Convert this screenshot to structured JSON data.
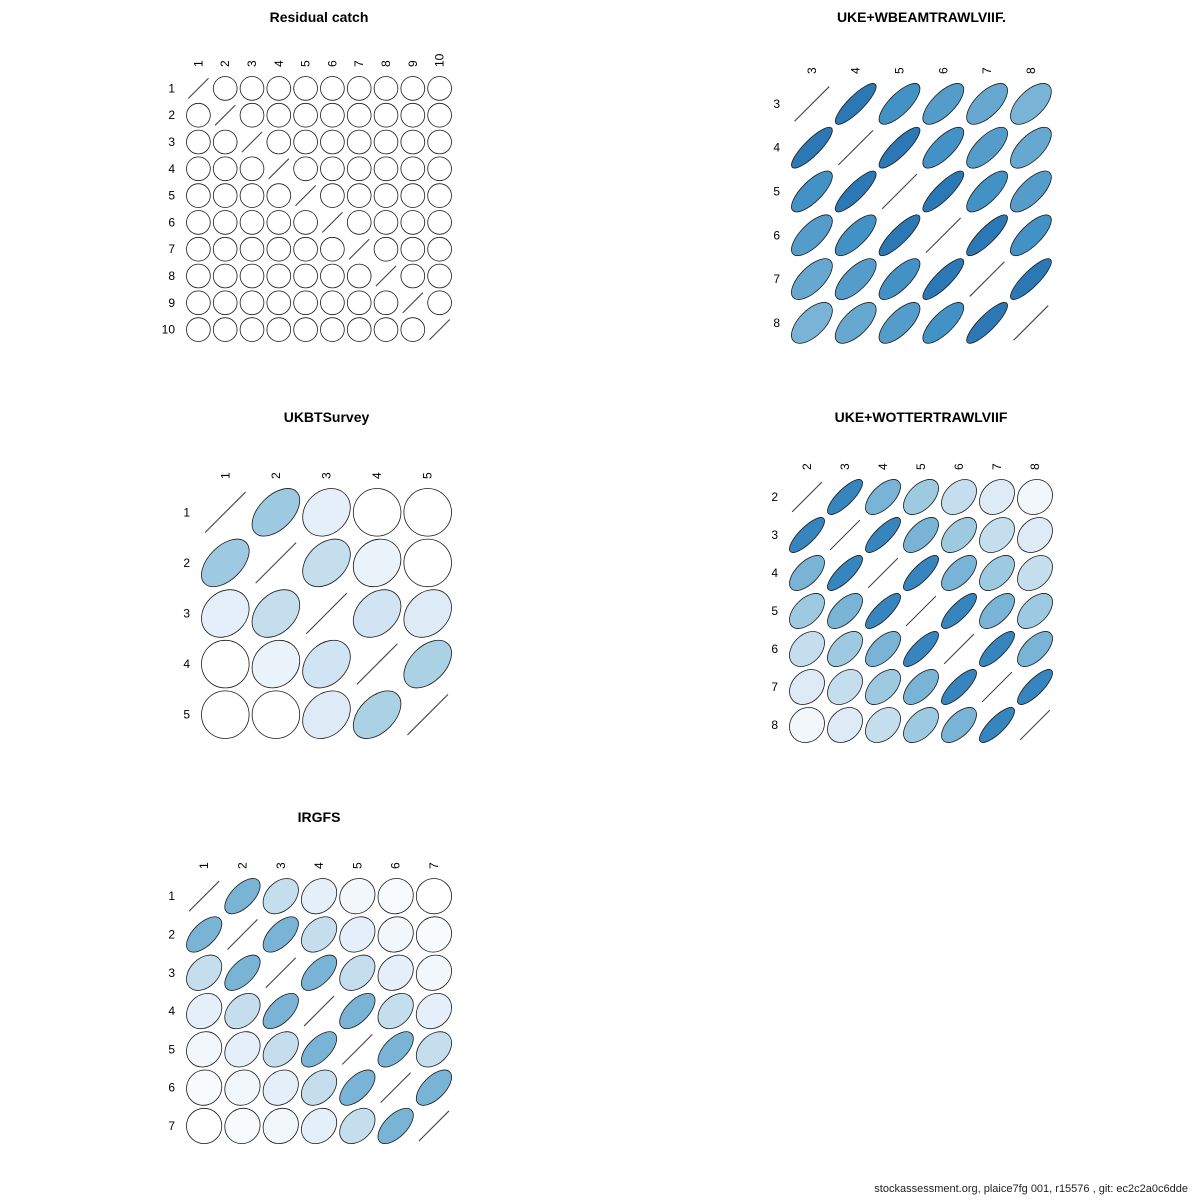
{
  "footer": "stockassessment.org, plaice7fg 001, r15576 , git: ec2c2a0c6dde",
  "colors": {
    "scale": [
      "#ffffff",
      "#deebf7",
      "#9ecae1",
      "#4292c6",
      "#08519c"
    ],
    "ellipse_stroke": "#1a1a1a",
    "diagonal_line": "#444444"
  },
  "chart_data": [
    {
      "type": "heatmap",
      "subtype": "correlation-ellipse-matrix",
      "title": "Residual catch",
      "ages": [
        "1",
        "2",
        "3",
        "4",
        "5",
        "6",
        "7",
        "8",
        "9",
        "10"
      ],
      "matrix": [
        [
          1,
          0,
          0,
          0,
          0,
          0,
          0,
          0,
          0,
          0
        ],
        [
          0,
          1,
          0,
          0,
          0,
          0,
          0,
          0,
          0,
          0
        ],
        [
          0,
          0,
          1,
          0,
          0,
          0,
          0,
          0,
          0,
          0
        ],
        [
          0,
          0,
          0,
          1,
          0,
          0,
          0,
          0,
          0,
          0
        ],
        [
          0,
          0,
          0,
          0,
          1,
          0,
          0,
          0,
          0,
          0
        ],
        [
          0,
          0,
          0,
          0,
          0,
          1,
          0,
          0,
          0,
          0
        ],
        [
          0,
          0,
          0,
          0,
          0,
          0,
          1,
          0,
          0,
          0
        ],
        [
          0,
          0,
          0,
          0,
          0,
          0,
          0,
          1,
          0,
          0
        ],
        [
          0,
          0,
          0,
          0,
          0,
          0,
          0,
          0,
          1,
          0
        ],
        [
          0,
          0,
          0,
          0,
          0,
          0,
          0,
          0,
          0,
          1
        ]
      ]
    },
    {
      "type": "heatmap",
      "subtype": "correlation-ellipse-matrix",
      "title": "UKE+WBEAMTRAWLVIIF.",
      "ages": [
        "3",
        "4",
        "5",
        "6",
        "7",
        "8"
      ],
      "matrix": [
        [
          1,
          0.85,
          0.75,
          0.7,
          0.65,
          0.6
        ],
        [
          0.85,
          1,
          0.85,
          0.75,
          0.7,
          0.65
        ],
        [
          0.75,
          0.85,
          1,
          0.85,
          0.75,
          0.7
        ],
        [
          0.7,
          0.75,
          0.85,
          1,
          0.85,
          0.75
        ],
        [
          0.65,
          0.7,
          0.75,
          0.85,
          1,
          0.85
        ],
        [
          0.6,
          0.65,
          0.7,
          0.75,
          0.85,
          1
        ]
      ]
    },
    {
      "type": "heatmap",
      "subtype": "correlation-ellipse-matrix",
      "title": "UKBTSurvey",
      "ages": [
        "1",
        "2",
        "3",
        "4",
        "5"
      ],
      "matrix": [
        [
          1,
          0.5,
          0.2,
          0,
          0
        ],
        [
          0.5,
          1,
          0.35,
          0.15,
          0
        ],
        [
          0.2,
          0.35,
          1,
          0.3,
          0.25
        ],
        [
          0,
          0.15,
          0.3,
          1,
          0.45
        ],
        [
          0,
          0,
          0.25,
          0.45,
          1
        ]
      ]
    },
    {
      "type": "heatmap",
      "subtype": "correlation-ellipse-matrix",
      "title": "UKE+WOTTERTRAWLVIIF",
      "ages": [
        "2",
        "3",
        "4",
        "5",
        "6",
        "7",
        "8"
      ],
      "matrix": [
        [
          1,
          0.8,
          0.6,
          0.5,
          0.35,
          0.25,
          0.1
        ],
        [
          0.8,
          1,
          0.8,
          0.6,
          0.5,
          0.35,
          0.25
        ],
        [
          0.6,
          0.8,
          1,
          0.8,
          0.6,
          0.5,
          0.35
        ],
        [
          0.5,
          0.6,
          0.8,
          1,
          0.8,
          0.6,
          0.5
        ],
        [
          0.35,
          0.5,
          0.6,
          0.8,
          1,
          0.8,
          0.6
        ],
        [
          0.25,
          0.35,
          0.5,
          0.6,
          0.8,
          1,
          0.8
        ],
        [
          0.1,
          0.25,
          0.35,
          0.5,
          0.6,
          0.8,
          1
        ]
      ]
    },
    {
      "type": "heatmap",
      "subtype": "correlation-ellipse-matrix",
      "title": "IRGFS",
      "ages": [
        "1",
        "2",
        "3",
        "4",
        "5",
        "6",
        "7"
      ],
      "matrix": [
        [
          1,
          0.6,
          0.35,
          0.2,
          0.1,
          0.05,
          0
        ],
        [
          0.6,
          1,
          0.6,
          0.35,
          0.2,
          0.1,
          0.05
        ],
        [
          0.35,
          0.6,
          1,
          0.6,
          0.35,
          0.2,
          0.1
        ],
        [
          0.2,
          0.35,
          0.6,
          1,
          0.6,
          0.35,
          0.2
        ],
        [
          0.1,
          0.2,
          0.35,
          0.6,
          1,
          0.6,
          0.35
        ],
        [
          0.05,
          0.1,
          0.2,
          0.35,
          0.6,
          1,
          0.6
        ],
        [
          0,
          0.05,
          0.1,
          0.2,
          0.35,
          0.6,
          1
        ]
      ]
    }
  ]
}
